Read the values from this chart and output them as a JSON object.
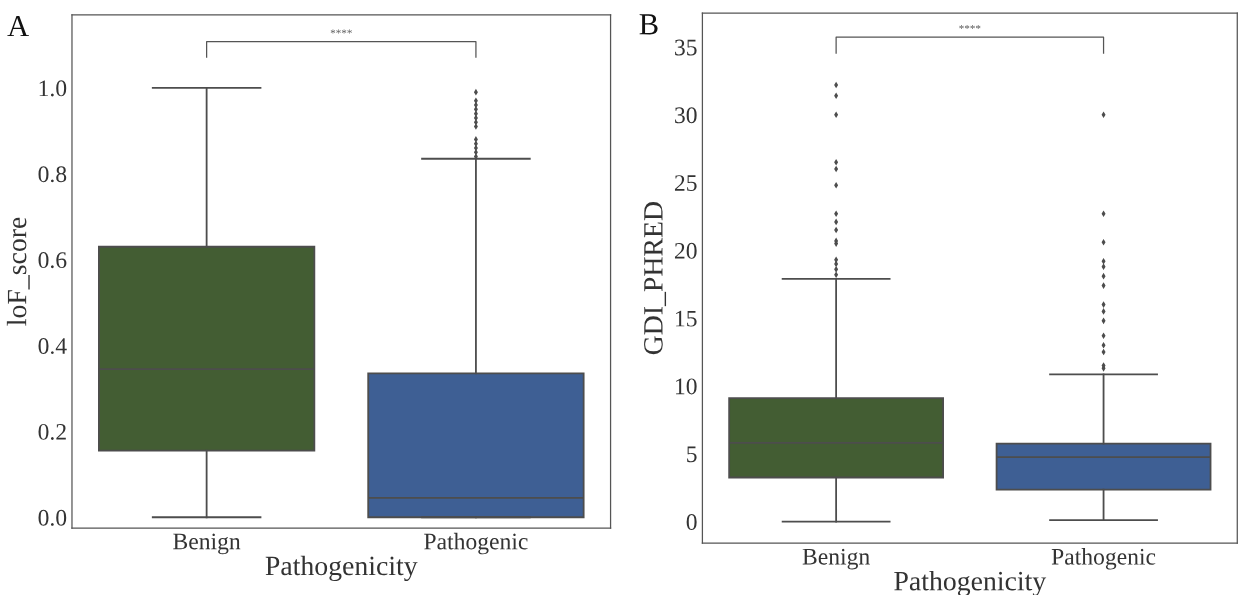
{
  "chart_data": [
    {
      "type": "box",
      "title": "A",
      "xlabel": "Pathogenicity",
      "ylabel": "loF_score",
      "categories": [
        "Benign",
        "Pathogenic"
      ],
      "colors": [
        "#435d33",
        "#3e5f94"
      ],
      "boxes": [
        {
          "low": 0.0,
          "q1": 0.155,
          "median": 0.345,
          "q3": 0.63,
          "high": 1.0
        },
        {
          "low": 0.0,
          "q1": 0.0,
          "median": 0.045,
          "q3": 0.335,
          "high": 0.835,
          "outliers": [
            0.84,
            0.85,
            0.86,
            0.87,
            0.88,
            0.91,
            0.92,
            0.93,
            0.94,
            0.95,
            0.96,
            0.97,
            0.99
          ]
        }
      ],
      "ylim": [
        -0.025,
        1.17
      ],
      "yticks": [
        {
          "value": 0,
          "label": "0.0"
        },
        {
          "value": 0.2,
          "label": "0.2"
        },
        {
          "value": 0.4,
          "label": "0.4"
        },
        {
          "value": 0.6,
          "label": "0.6"
        },
        {
          "value": 0.8,
          "label": "0.8"
        },
        {
          "value": 1.0,
          "label": "1.0"
        }
      ],
      "annotations": [
        "****"
      ],
      "grid": false
    },
    {
      "type": "box",
      "title": "B",
      "xlabel": "Pathogenicity",
      "ylabel": "GDI_PHRED",
      "categories": [
        "Benign",
        "Pathogenic"
      ],
      "colors": [
        "#435d33",
        "#3e5f94"
      ],
      "boxes": [
        {
          "low": 0.0,
          "q1": 3.25,
          "median": 5.8,
          "q3": 9.1,
          "high": 17.9,
          "outliers": [
            18.2,
            18.6,
            19.0,
            19.3,
            20.5,
            20.7,
            21.5,
            22.1,
            22.7,
            24.8,
            26.0,
            26.5,
            30.0,
            31.4,
            32.2
          ]
        },
        {
          "low": 0.1,
          "q1": 2.35,
          "median": 4.75,
          "q3": 5.75,
          "high": 10.85,
          "outliers": [
            11.3,
            11.5,
            12.5,
            13.0,
            13.7,
            14.8,
            15.5,
            16.0,
            17.4,
            18.1,
            18.8,
            19.2,
            20.6,
            22.7,
            30.0
          ]
        }
      ],
      "ylim": [
        -1.6,
        37.5
      ],
      "yticks": [
        0,
        5,
        10,
        15,
        20,
        25,
        30,
        35
      ],
      "annotations": [
        "****"
      ],
      "grid": false
    }
  ]
}
